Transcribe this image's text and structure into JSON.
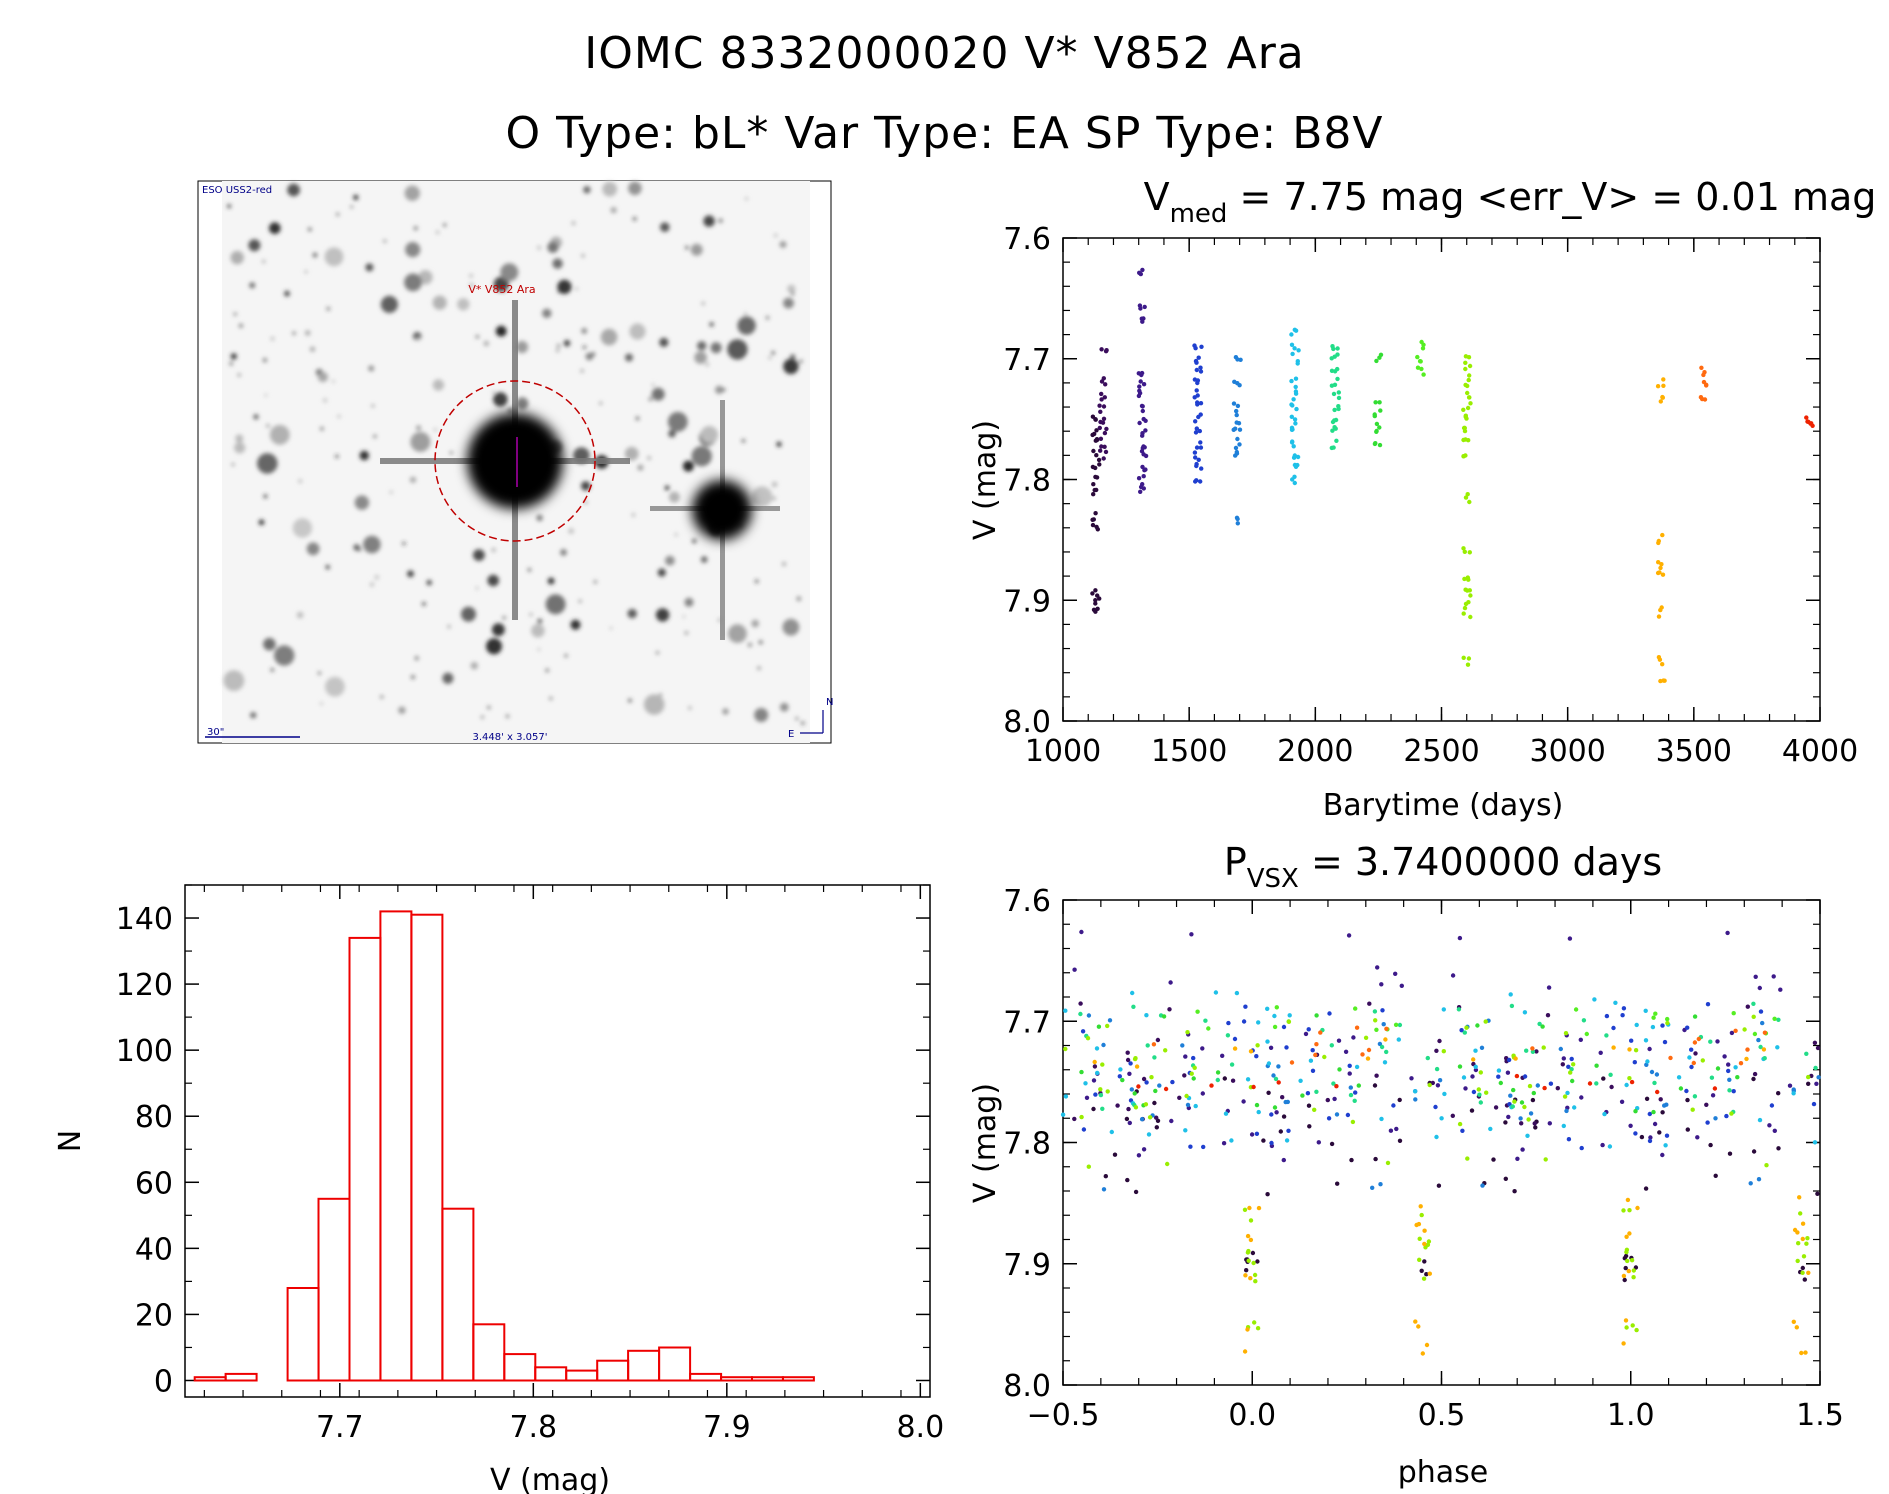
{
  "header": {
    "title_line1": "IOMC 8332000020    V* V852 Ara",
    "title_line2": "O Type: bL*  Var Type: EA  SP Type: B8V"
  },
  "finder": {
    "survey": "ESO USS2-red",
    "target_label": "V* V852 Ara",
    "scale_label": "30\"",
    "size_label": "3.448' x 3.057'",
    "compass_n": "N",
    "compass_e": "E"
  },
  "chart_data": [
    {
      "type": "scatter",
      "title_main": "V",
      "title_sub": "med",
      "title_rest": " = 7.75 mag <err_V> = 0.01 mag",
      "xlabel": "Barytime (days)",
      "ylabel": "V (mag)",
      "xlim": [
        1000,
        4000
      ],
      "ylim": [
        8.0,
        7.6
      ],
      "xticks": [
        "1000",
        "1500",
        "2000",
        "2500",
        "3000",
        "3500",
        "4000"
      ],
      "yticks": [
        "7.6",
        "7.7",
        "7.8",
        "7.9",
        "8.0"
      ],
      "grid": false,
      "groups": [
        {
          "x": 1130,
          "color": "#2a0a3a",
          "y": [
            7.75,
            7.76,
            7.77,
            7.78,
            7.79,
            7.8,
            7.81,
            7.83,
            7.84,
            7.895,
            7.9,
            7.91
          ]
        },
        {
          "x": 1160,
          "color": "#3a0d5c",
          "y": [
            7.69,
            7.72,
            7.73,
            7.74,
            7.75,
            7.76,
            7.77,
            7.78
          ]
        },
        {
          "x": 1315,
          "color": "#3d1a8a",
          "y": [
            7.63,
            7.66,
            7.67,
            7.71,
            7.72,
            7.73,
            7.74,
            7.75,
            7.76,
            7.77,
            7.78,
            7.79,
            7.8,
            7.81
          ]
        },
        {
          "x": 1535,
          "color": "#1f3fcf",
          "y": [
            7.69,
            7.7,
            7.71,
            7.72,
            7.73,
            7.74,
            7.75,
            7.76,
            7.77,
            7.78,
            7.79,
            7.8
          ]
        },
        {
          "x": 1690,
          "color": "#1f7fd8",
          "y": [
            7.7,
            7.72,
            7.74,
            7.75,
            7.76,
            7.77,
            7.78,
            7.835
          ]
        },
        {
          "x": 1920,
          "color": "#1fc0e8",
          "y": [
            7.68,
            7.69,
            7.7,
            7.72,
            7.73,
            7.74,
            7.75,
            7.76,
            7.77,
            7.78,
            7.79,
            7.8
          ]
        },
        {
          "x": 2080,
          "color": "#22dd88",
          "y": [
            7.69,
            7.7,
            7.71,
            7.72,
            7.73,
            7.74,
            7.75,
            7.76,
            7.77
          ]
        },
        {
          "x": 2250,
          "color": "#33dd33",
          "y": [
            7.7,
            7.74,
            7.75,
            7.76,
            7.77
          ]
        },
        {
          "x": 2415,
          "color": "#55ee22",
          "y": [
            7.69,
            7.7,
            7.71
          ]
        },
        {
          "x": 2600,
          "color": "#99ee00",
          "y": [
            7.7,
            7.71,
            7.72,
            7.73,
            7.74,
            7.75,
            7.76,
            7.77,
            7.78,
            7.815,
            7.86,
            7.88,
            7.89,
            7.9,
            7.91,
            7.95
          ]
        },
        {
          "x": 3370,
          "color": "#ffb000",
          "y": [
            7.72,
            7.735,
            7.85,
            7.87,
            7.88,
            7.91,
            7.95,
            7.97
          ]
        },
        {
          "x": 3540,
          "color": "#ff6a10",
          "y": [
            7.71,
            7.72,
            7.73
          ]
        },
        {
          "x": 3960,
          "color": "#ee2200",
          "y": [
            7.75,
            7.755
          ]
        }
      ]
    },
    {
      "type": "bar",
      "xlabel": "V (mag)",
      "ylabel": "N",
      "xlim": [
        7.62,
        8.005
      ],
      "ylim": [
        -5,
        150
      ],
      "xticks": [
        "7.7",
        "7.8",
        "7.9",
        "8.0"
      ],
      "yticks": [
        "0",
        "20",
        "40",
        "60",
        "80",
        "100",
        "120",
        "140"
      ],
      "bar_color": "#ee0000",
      "bin_width": 0.016,
      "bin_starts": [
        7.625,
        7.641,
        7.657,
        7.673,
        7.689,
        7.705,
        7.721,
        7.737,
        7.753,
        7.769,
        7.785,
        7.801,
        7.817,
        7.833,
        7.849,
        7.865,
        7.881,
        7.897,
        7.913,
        7.929,
        7.945,
        7.961
      ],
      "values": [
        1,
        2,
        0,
        28,
        55,
        134,
        142,
        141,
        52,
        17,
        8,
        4,
        3,
        6,
        9,
        10,
        2,
        1,
        1,
        1,
        0,
        0
      ]
    },
    {
      "type": "scatter",
      "title_main": "P",
      "title_sub": "VSX",
      "title_rest": " = 3.7400000 days",
      "xlabel": "phase",
      "ylabel": "V (mag)",
      "xlim": [
        -0.5,
        1.5
      ],
      "ylim": [
        8.0,
        7.6
      ],
      "xticks": [
        "−0.5",
        "0.0",
        "0.5",
        "1.0",
        "1.5"
      ],
      "yticks": [
        "7.6",
        "7.7",
        "7.8",
        "7.9",
        "8.0"
      ],
      "grid": false
    }
  ]
}
